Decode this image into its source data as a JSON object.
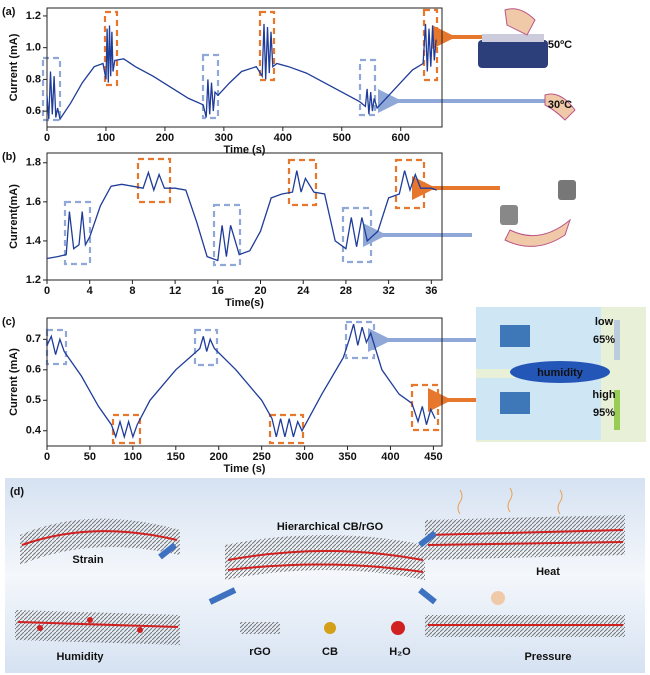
{
  "chart_data": [
    {
      "type": "line",
      "panel": "(a)",
      "x_label": "Time (s)",
      "y_label": "Current (mA)",
      "xlim": [
        0,
        670
      ],
      "xticks": [
        0,
        100,
        200,
        300,
        400,
        500,
        600
      ],
      "ylim": [
        0.5,
        1.25
      ],
      "yticks": [
        {
          "value": 0.6,
          "label": "0.6"
        },
        {
          "value": 0.8,
          "label": "0.8"
        },
        {
          "value": 1.0,
          "label": "1.0"
        },
        {
          "value": 1.2,
          "label": "1.2"
        }
      ],
      "series": [
        {
          "color": "#1f3c99",
          "x": [
            0,
            3,
            6,
            9,
            12,
            15,
            18,
            22,
            40,
            60,
            80,
            95,
            100,
            102,
            104,
            106,
            108,
            110,
            112,
            115,
            130,
            150,
            180,
            210,
            240,
            265,
            270,
            273,
            276,
            279,
            282,
            285,
            290,
            310,
            330,
            355,
            365,
            368,
            371,
            374,
            377,
            380,
            383,
            390,
            410,
            440,
            470,
            500,
            530,
            540,
            543,
            546,
            549,
            552,
            555,
            560,
            580,
            600,
            620,
            638,
            642,
            645,
            648,
            651,
            654,
            657,
            660
          ],
          "values": [
            0.7,
            0.55,
            0.85,
            0.58,
            0.82,
            0.56,
            0.62,
            0.55,
            0.65,
            0.78,
            0.88,
            0.9,
            0.8,
            1.12,
            0.78,
            1.14,
            0.82,
            1.1,
            0.85,
            0.92,
            0.93,
            0.88,
            0.82,
            0.75,
            0.68,
            0.64,
            0.56,
            0.8,
            0.58,
            0.78,
            0.6,
            0.72,
            0.7,
            0.78,
            0.85,
            0.88,
            0.82,
            1.15,
            0.8,
            1.13,
            0.84,
            1.1,
            0.88,
            0.9,
            0.88,
            0.84,
            0.78,
            0.72,
            0.66,
            0.63,
            0.74,
            0.58,
            0.72,
            0.6,
            0.68,
            0.62,
            0.7,
            0.78,
            0.86,
            0.9,
            1.15,
            0.85,
            1.12,
            0.88,
            1.14,
            0.92,
            1.05
          ]
        }
      ],
      "annotations": [
        "50ºC",
        "30ºC"
      ]
    },
    {
      "type": "line",
      "panel": "(b)",
      "x_label": "Time(s)",
      "y_label": "Current(mA)",
      "xlim": [
        0,
        37
      ],
      "xticks": [
        0,
        4,
        8,
        12,
        16,
        20,
        24,
        28,
        32,
        36
      ],
      "ylim": [
        1.2,
        1.85
      ],
      "yticks": [
        1.2,
        1.4,
        1.6,
        1.8
      ],
      "series": [
        {
          "color": "#1f3c99",
          "x": [
            0,
            1,
            1.8,
            2.1,
            2.5,
            3,
            3.3,
            3.6,
            4,
            5,
            6,
            7,
            8,
            9,
            9.5,
            10,
            10.5,
            11,
            12,
            13,
            14,
            15,
            16,
            16.4,
            16.8,
            17.2,
            18,
            19,
            20,
            21,
            22,
            23,
            23.4,
            23.8,
            24.2,
            25,
            26,
            27,
            28,
            28.5,
            29,
            29.5,
            30,
            31,
            32,
            33,
            33.5,
            34,
            34.5,
            35,
            36,
            36.5
          ],
          "values": [
            1.31,
            1.32,
            1.33,
            1.55,
            1.36,
            1.38,
            1.55,
            1.38,
            1.42,
            1.58,
            1.68,
            1.69,
            1.68,
            1.67,
            1.75,
            1.66,
            1.74,
            1.67,
            1.67,
            1.66,
            1.5,
            1.32,
            1.3,
            1.48,
            1.32,
            1.48,
            1.33,
            1.35,
            1.45,
            1.62,
            1.64,
            1.65,
            1.76,
            1.65,
            1.72,
            1.65,
            1.64,
            1.4,
            1.36,
            1.52,
            1.37,
            1.52,
            1.4,
            1.45,
            1.62,
            1.64,
            1.76,
            1.66,
            1.74,
            1.67,
            1.67,
            1.66
          ]
        }
      ]
    },
    {
      "type": "line",
      "panel": "(c)",
      "x_label": "Time (s)",
      "y_label": "Current (mA)",
      "xlim": [
        0,
        460
      ],
      "xticks": [
        0,
        50,
        100,
        150,
        200,
        250,
        300,
        350,
        400,
        450
      ],
      "ylim": [
        0.35,
        0.77
      ],
      "yticks": [
        0.4,
        0.5,
        0.6,
        0.7
      ],
      "series": [
        {
          "color": "#1f3c99",
          "x": [
            0,
            5,
            10,
            15,
            20,
            25,
            40,
            60,
            75,
            80,
            85,
            90,
            95,
            100,
            105,
            120,
            150,
            170,
            178,
            182,
            186,
            190,
            195,
            220,
            250,
            262,
            267,
            272,
            277,
            282,
            287,
            292,
            297,
            320,
            345,
            352,
            357,
            362,
            367,
            372,
            377,
            390,
            410,
            425,
            432,
            437,
            442,
            447,
            452
          ],
          "values": [
            0.68,
            0.71,
            0.65,
            0.7,
            0.66,
            0.64,
            0.58,
            0.48,
            0.42,
            0.38,
            0.43,
            0.38,
            0.43,
            0.38,
            0.42,
            0.5,
            0.6,
            0.65,
            0.67,
            0.71,
            0.66,
            0.7,
            0.67,
            0.6,
            0.5,
            0.44,
            0.38,
            0.44,
            0.38,
            0.44,
            0.38,
            0.43,
            0.4,
            0.52,
            0.64,
            0.7,
            0.75,
            0.68,
            0.74,
            0.69,
            0.72,
            0.6,
            0.52,
            0.49,
            0.43,
            0.48,
            0.42,
            0.47,
            0.44
          ]
        }
      ],
      "annotations": [
        "low",
        "65%",
        "humidity",
        "high",
        "95%"
      ]
    }
  ],
  "diagram": {
    "label": "(d)",
    "title": "Hierarchical CB/rGO",
    "states": [
      "Strain",
      "Heat",
      "Humidity",
      "Pressure"
    ],
    "legend": [
      "rGO",
      "CB",
      "H₂O"
    ]
  }
}
